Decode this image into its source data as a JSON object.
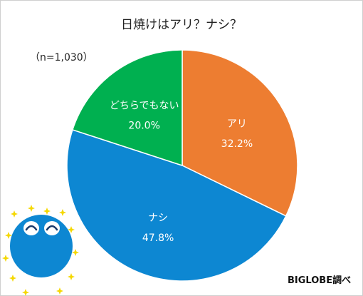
{
  "chart_data": {
    "type": "pie",
    "title": "日焼けはアリ？ナシ？",
    "note": "（n=1,030）",
    "source": "BIGLOBE調べ",
    "slices": [
      {
        "label": "アリ",
        "value": 32.2,
        "display": "32.2%",
        "color": "#ed7d31"
      },
      {
        "label": "ナシ",
        "value": 47.8,
        "display": "47.8%",
        "color": "#0d87d2"
      },
      {
        "label": "どちらでもない",
        "value": 20.0,
        "display": "20.0%",
        "color": "#00b050"
      }
    ]
  },
  "mascot": {
    "body_color": "#0d87d2",
    "sparkle_color": "#f5d800"
  }
}
